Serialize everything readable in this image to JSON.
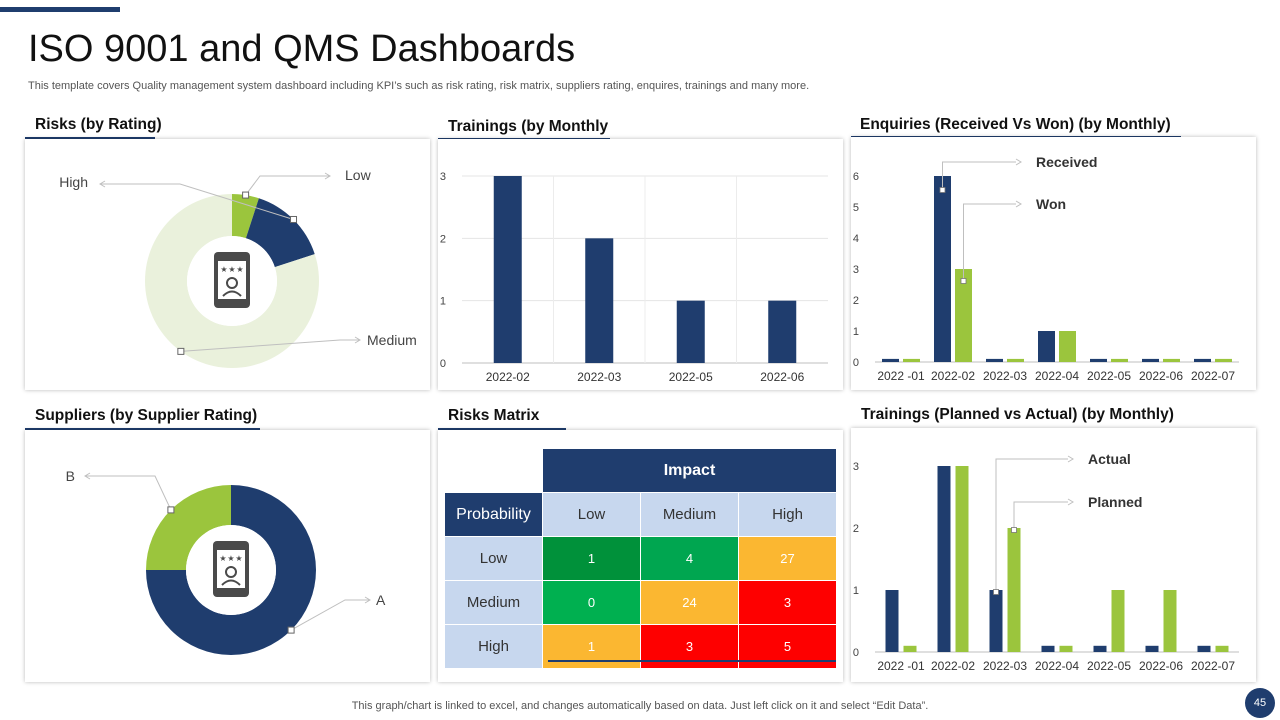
{
  "header": {
    "title": "ISO 9001 and QMS Dashboards",
    "subtitle": "This template covers Quality management system dashboard including KPI’s such as risk rating, risk matrix, suppliers rating, enquires, trainings and many more."
  },
  "footer": {
    "note": "This graph/chart is linked to excel,  and changes automatically based on data. Just left click on it and select “Edit Data”.",
    "page_number": "45"
  },
  "colors": {
    "navy": "#1f3d6e",
    "green": "#9bc53d",
    "pale_green": "#eaf1dc",
    "dark_green": "#00a650",
    "orange": "#fbb731",
    "red": "#fe0000",
    "light_blue": "#c7d7ee"
  },
  "sections": {
    "risks_rating": "Risks (by Rating)",
    "trainings_monthly": "Trainings (by Monthly",
    "enquiries": "Enquiries (Received Vs Won) (by Monthly)",
    "suppliers": "Suppliers (by  Supplier Rating)",
    "risks_matrix": "Risks Matrix",
    "trainings_planned": "Trainings (Planned vs Actual) (by Monthly)"
  },
  "risk_matrix": {
    "impact_label": "Impact",
    "probability_label": "Probability",
    "columns": [
      "Low",
      "Medium",
      "High"
    ],
    "rows": [
      {
        "label": "Low",
        "values": [
          "1",
          "4",
          "27"
        ],
        "colors": [
          "#00913a",
          "#00a650",
          "#fbb731"
        ]
      },
      {
        "label": "Medium",
        "values": [
          "0",
          "24",
          "3"
        ],
        "colors": [
          "#00b050",
          "#fbb731",
          "#fe0000"
        ]
      },
      {
        "label": "High",
        "values": [
          "1",
          "3",
          "5"
        ],
        "colors": [
          "#fbb731",
          "#fe0000",
          "#fe0000"
        ]
      }
    ]
  },
  "chart_data": [
    {
      "id": "risks-rating",
      "type": "pie",
      "title": "Risks (by Rating)",
      "labels": [
        "Low",
        "High",
        "Medium"
      ],
      "values": [
        5,
        15,
        80
      ],
      "colors": [
        "#9bc53d",
        "#1f3d6e",
        "#eaf1dc"
      ]
    },
    {
      "id": "trainings-monthly",
      "type": "bar",
      "title": "Trainings (by Monthly",
      "categories": [
        "2022-02",
        "2022-03",
        "2022-05",
        "2022-06"
      ],
      "series": [
        {
          "name": "Trainings",
          "values": [
            3,
            2,
            1,
            1
          ],
          "color": "#1f3d6e"
        }
      ],
      "yticks": [
        "0",
        "1",
        "2",
        "3"
      ],
      "ylim": [
        0,
        3
      ]
    },
    {
      "id": "enquiries",
      "type": "bar",
      "title": "Enquiries (Received Vs Won) (by Monthly)",
      "categories": [
        "2022 -01",
        "2022-02",
        "2022-03",
        "2022-04",
        "2022-05",
        "2022-06",
        "2022-07"
      ],
      "series": [
        {
          "name": "Received",
          "values": [
            0.1,
            6,
            0.1,
            1,
            0.1,
            0.1,
            0.1
          ],
          "color": "#1f3d6e"
        },
        {
          "name": "Won",
          "values": [
            0.1,
            3,
            0.1,
            1,
            0.1,
            0.1,
            0.1
          ],
          "color": "#9bc53d"
        }
      ],
      "yticks": [
        "0",
        "1",
        "2",
        "3",
        "4",
        "5",
        "6"
      ],
      "ylim": [
        0,
        6
      ]
    },
    {
      "id": "suppliers",
      "type": "pie",
      "title": "Suppliers (by  Supplier Rating)",
      "labels": [
        "A",
        "B"
      ],
      "values": [
        75,
        25
      ],
      "colors": [
        "#1f3d6e",
        "#9bc53d"
      ]
    },
    {
      "id": "trainings-planned",
      "type": "bar",
      "title": "Trainings (Planned vs Actual) (by Monthly)",
      "categories": [
        "2022 -01",
        "2022-02",
        "2022-03",
        "2022-04",
        "2022-05",
        "2022-06",
        "2022-07"
      ],
      "series": [
        {
          "name": "Actual",
          "values": [
            1,
            3,
            1,
            0.1,
            0.1,
            0.1,
            0.1
          ],
          "color": "#1f3d6e"
        },
        {
          "name": "Planned",
          "values": [
            0.1,
            3,
            2,
            0.1,
            1,
            1,
            0.1
          ],
          "color": "#9bc53d"
        }
      ],
      "yticks": [
        "0",
        "1",
        "2",
        "3"
      ],
      "ylim": [
        0,
        3
      ]
    }
  ]
}
